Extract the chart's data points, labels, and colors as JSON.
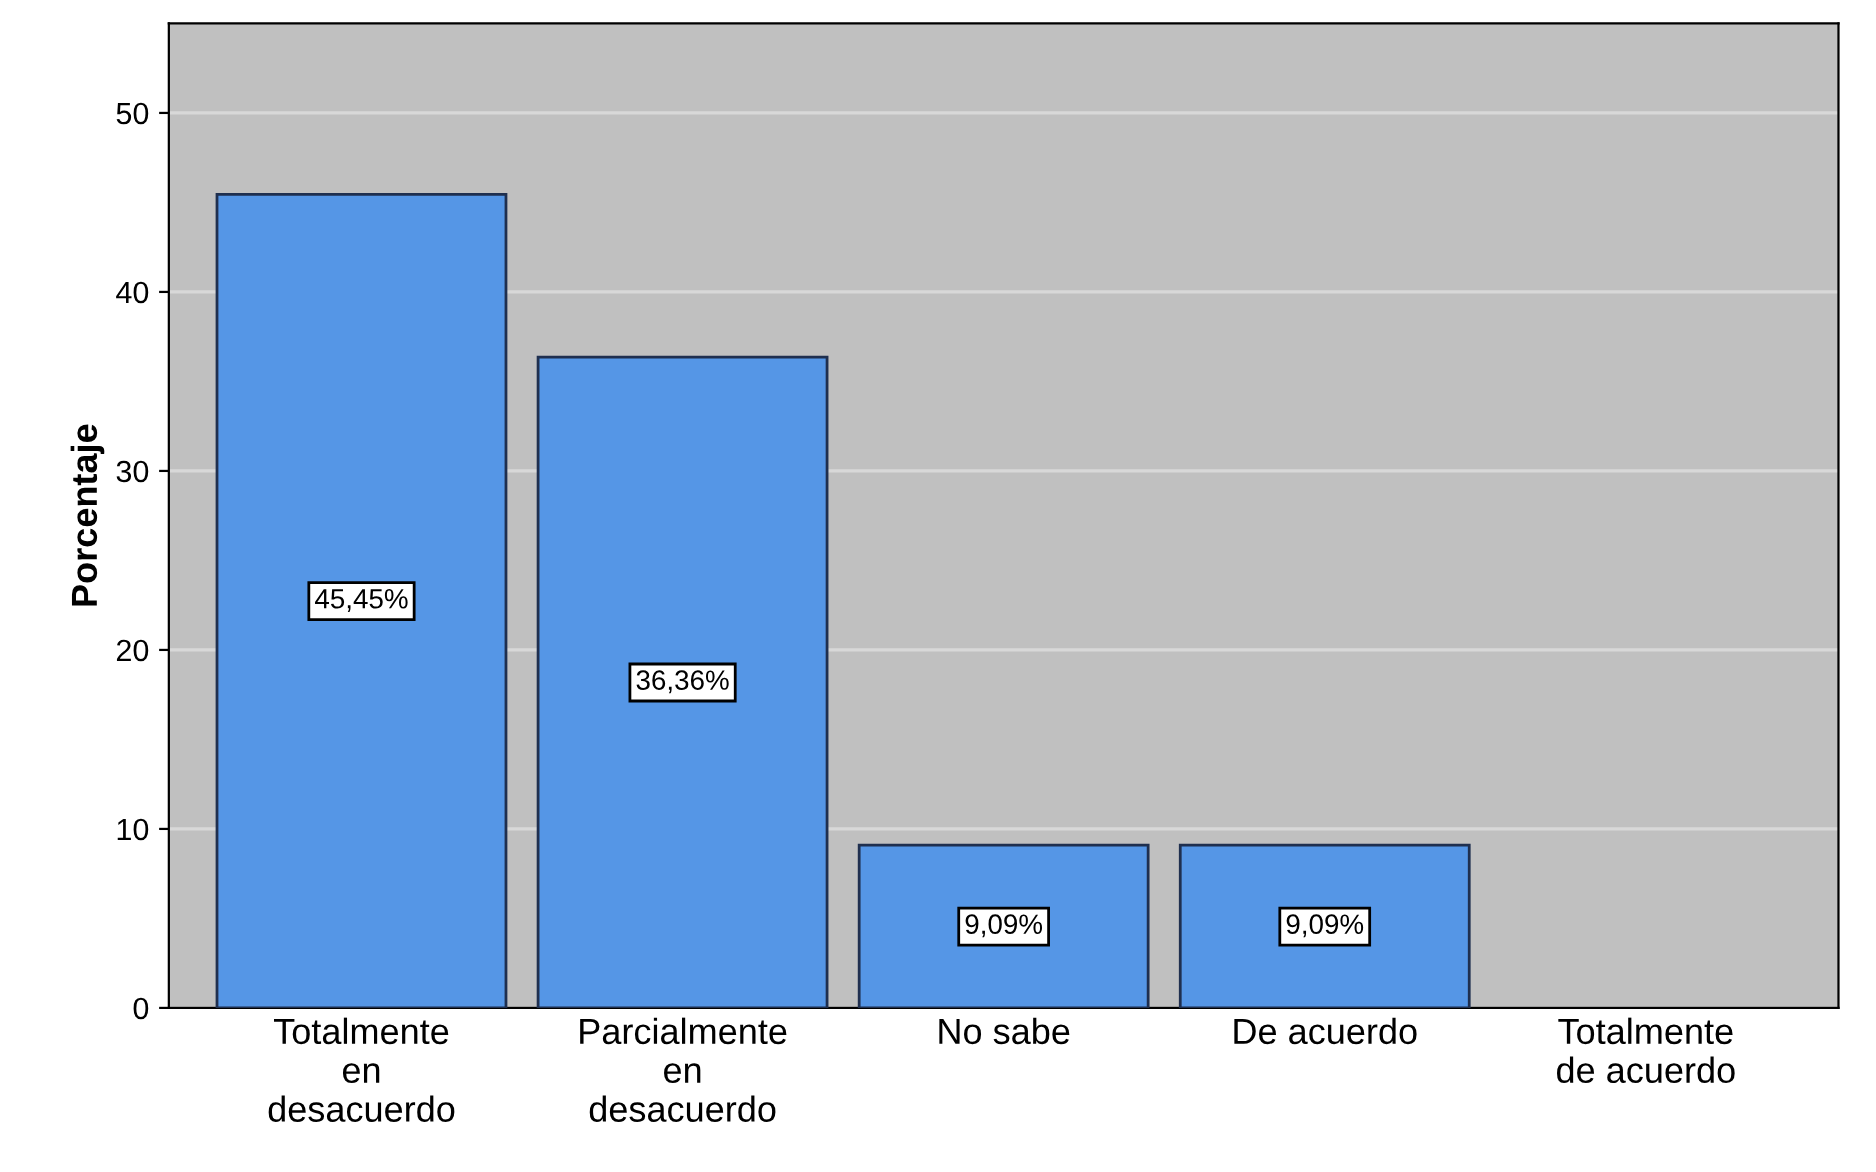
{
  "chart_data": {
    "type": "bar",
    "ylabel": "Porcentaje",
    "categories": [
      "Totalmente\nen\ndesacuerdo",
      "Parcialmente\nen\ndesacuerdo",
      "No sabe",
      "De acuerdo",
      "Totalmente\nde acuerdo"
    ],
    "values": [
      45.45,
      36.36,
      9.09,
      9.09,
      null
    ],
    "value_labels": [
      "45,45%",
      "36,36%",
      "9,09%",
      "9,09%",
      null
    ],
    "color": "#5596e6",
    "ylim": [
      0,
      55
    ],
    "yticks": [
      0,
      10,
      20,
      30,
      40,
      50
    ],
    "grid": "y"
  }
}
